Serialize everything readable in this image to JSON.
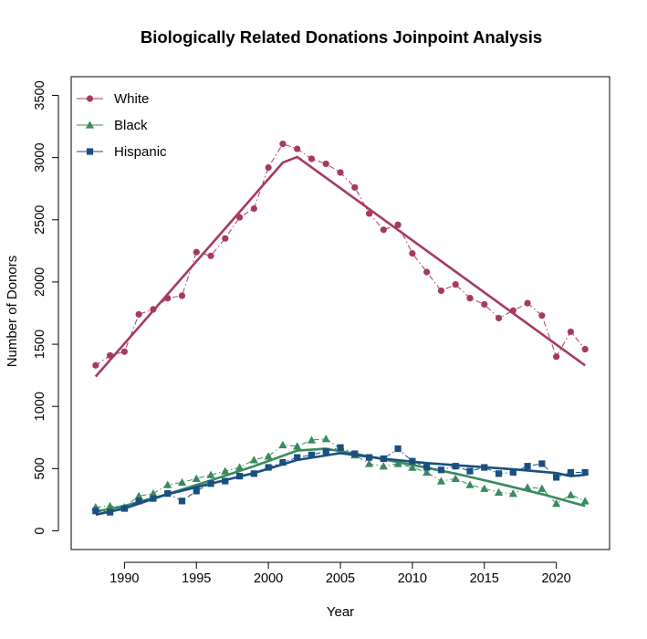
{
  "chart_data": {
    "type": "line",
    "title": "Biologically Related Donations Joinpoint Analysis",
    "xlabel": "Year",
    "ylabel": "Number of Donors",
    "xlim": [
      1986.3,
      2023.7
    ],
    "ylim": [
      -150,
      3650
    ],
    "xticks": [
      1990,
      1995,
      2000,
      2005,
      2010,
      2015,
      2020
    ],
    "yticks": [
      0,
      500,
      1000,
      1500,
      2000,
      2500,
      3000,
      3500
    ],
    "grid": false,
    "legend_position": "top-left",
    "x": [
      1988,
      1989,
      1990,
      1991,
      1992,
      1993,
      1994,
      1995,
      1996,
      1997,
      1998,
      1999,
      2000,
      2001,
      2002,
      2003,
      2004,
      2005,
      2006,
      2007,
      2008,
      2009,
      2010,
      2011,
      2012,
      2013,
      2014,
      2015,
      2016,
      2017,
      2018,
      2019,
      2020,
      2021,
      2022
    ],
    "series": [
      {
        "name": "White",
        "color": "#a63a5e",
        "marker": "circle",
        "observed": [
          1330,
          1410,
          1440,
          1740,
          1780,
          1870,
          1890,
          2240,
          2210,
          2350,
          2520,
          2590,
          2920,
          3110,
          3070,
          2990,
          2950,
          2880,
          2760,
          2550,
          2420,
          2460,
          2230,
          2080,
          1930,
          1980,
          1870,
          1820,
          1710,
          1770,
          1830,
          1730,
          1400,
          1600,
          1460
        ],
        "fitted_x": [
          1988,
          2001,
          2002,
          2022
        ],
        "fitted": [
          1240,
          2960,
          3005,
          1330
        ]
      },
      {
        "name": "Black",
        "color": "#3a8a5f",
        "marker": "triangle",
        "observed": [
          190,
          200,
          190,
          280,
          300,
          370,
          390,
          420,
          450,
          480,
          510,
          570,
          600,
          690,
          680,
          730,
          740,
          660,
          610,
          540,
          520,
          540,
          510,
          470,
          400,
          420,
          370,
          340,
          310,
          300,
          350,
          340,
          220,
          290,
          240
        ],
        "fitted_x": [
          1988,
          1990,
          1993,
          1996,
          1999,
          2002,
          2004,
          2006,
          2008,
          2010,
          2013,
          2016,
          2019,
          2022
        ],
        "fitted": [
          155,
          200,
          295,
          405,
          520,
          645,
          660,
          620,
          575,
          530,
          460,
          380,
          295,
          200
        ]
      },
      {
        "name": "Hispanic",
        "color": "#1a4f80",
        "marker": "square",
        "observed": [
          160,
          150,
          180,
          240,
          260,
          300,
          240,
          320,
          380,
          400,
          440,
          460,
          510,
          550,
          590,
          610,
          640,
          670,
          620,
          590,
          580,
          660,
          560,
          510,
          490,
          520,
          480,
          510,
          460,
          470,
          520,
          540,
          430,
          470,
          470
        ],
        "fitted_x": [
          1988,
          1990,
          1993,
          1996,
          1999,
          2002,
          2005,
          2008,
          2011,
          2014,
          2017,
          2020,
          2021,
          2022
        ],
        "fitted": [
          130,
          180,
          295,
          380,
          465,
          570,
          625,
          580,
          545,
          520,
          495,
          465,
          440,
          450
        ]
      }
    ]
  }
}
